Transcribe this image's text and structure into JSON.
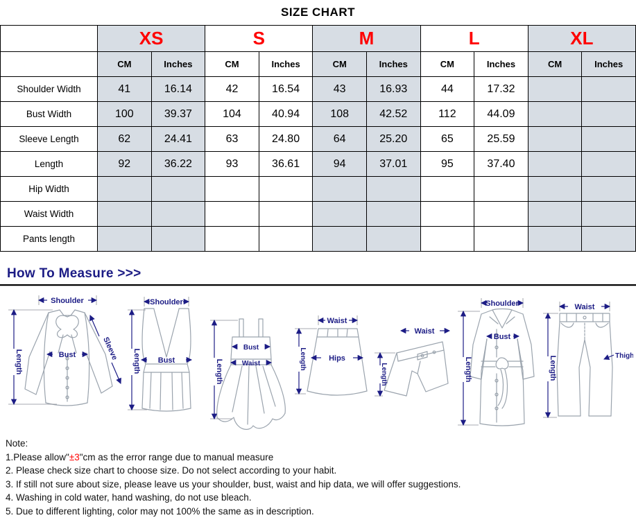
{
  "title": "SIZE CHART",
  "table": {
    "sizes": [
      "XS",
      "S",
      "M",
      "L",
      "XL"
    ],
    "unit_headers": [
      "CM",
      "Inches"
    ],
    "rows": [
      {
        "label": "Shoulder Width",
        "values": [
          "41",
          "16.14",
          "42",
          "16.54",
          "43",
          "16.93",
          "44",
          "17.32",
          "",
          ""
        ]
      },
      {
        "label": "Bust Width",
        "values": [
          "100",
          "39.37",
          "104",
          "40.94",
          "108",
          "42.52",
          "112",
          "44.09",
          "",
          ""
        ]
      },
      {
        "label": "Sleeve Length",
        "values": [
          "62",
          "24.41",
          "63",
          "24.80",
          "64",
          "25.20",
          "65",
          "25.59",
          "",
          ""
        ]
      },
      {
        "label": "Length",
        "values": [
          "92",
          "36.22",
          "93",
          "36.61",
          "94",
          "37.01",
          "95",
          "37.40",
          "",
          ""
        ]
      },
      {
        "label": "Hip Width",
        "values": [
          "",
          "",
          "",
          "",
          "",
          "",
          "",
          "",
          "",
          ""
        ]
      },
      {
        "label": "Waist Width",
        "values": [
          "",
          "",
          "",
          "",
          "",
          "",
          "",
          "",
          "",
          ""
        ]
      },
      {
        "label": "Pants length",
        "values": [
          "",
          "",
          "",
          "",
          "",
          "",
          "",
          "",
          "",
          ""
        ]
      }
    ]
  },
  "measure": {
    "heading": "How To Measure >>>"
  },
  "garments": [
    {
      "name": "blouse",
      "labels": {
        "shoulder": "Shoulder",
        "length": "Length",
        "bust": "Bust",
        "sleeve": "Sleeve"
      }
    },
    {
      "name": "vest",
      "labels": {
        "shoulder": "Shoulder",
        "length": "Length",
        "bust": "Bust"
      }
    },
    {
      "name": "dress",
      "labels": {
        "bust": "Bust",
        "waist": "Waist",
        "length": "Length"
      }
    },
    {
      "name": "skirt",
      "labels": {
        "waist": "Waist",
        "hips": "Hips",
        "length": "Length"
      }
    },
    {
      "name": "shorts",
      "labels": {
        "waist": "Waist",
        "length": "Length"
      }
    },
    {
      "name": "coat",
      "labels": {
        "shoulder": "Shoulder",
        "bust": "Bust",
        "length": "Length"
      }
    },
    {
      "name": "pants",
      "labels": {
        "waist": "Waist",
        "thigh": "Thigh",
        "length": "Length"
      }
    }
  ],
  "notes": {
    "heading": "Note:",
    "line1_prefix": "1.Please allow\"",
    "line1_red": "±3",
    "line1_suffix": "\"cm as the error range due to manual measure",
    "lines": [
      "2. Please check size chart to choose size. Do not select according to your habit.",
      "3. If still not sure about size, please leave us your shoulder, bust, waist and hip data, we will offer suggestions.",
      "4. Washing in cold water, hand washing, do not use bleach.",
      "5. Due to different lighting, color may not 100% the same as in description."
    ]
  },
  "colors": {
    "accent_red": "#ff0000",
    "navy": "#1c1c85",
    "cell_gray": "#d7dde4"
  }
}
